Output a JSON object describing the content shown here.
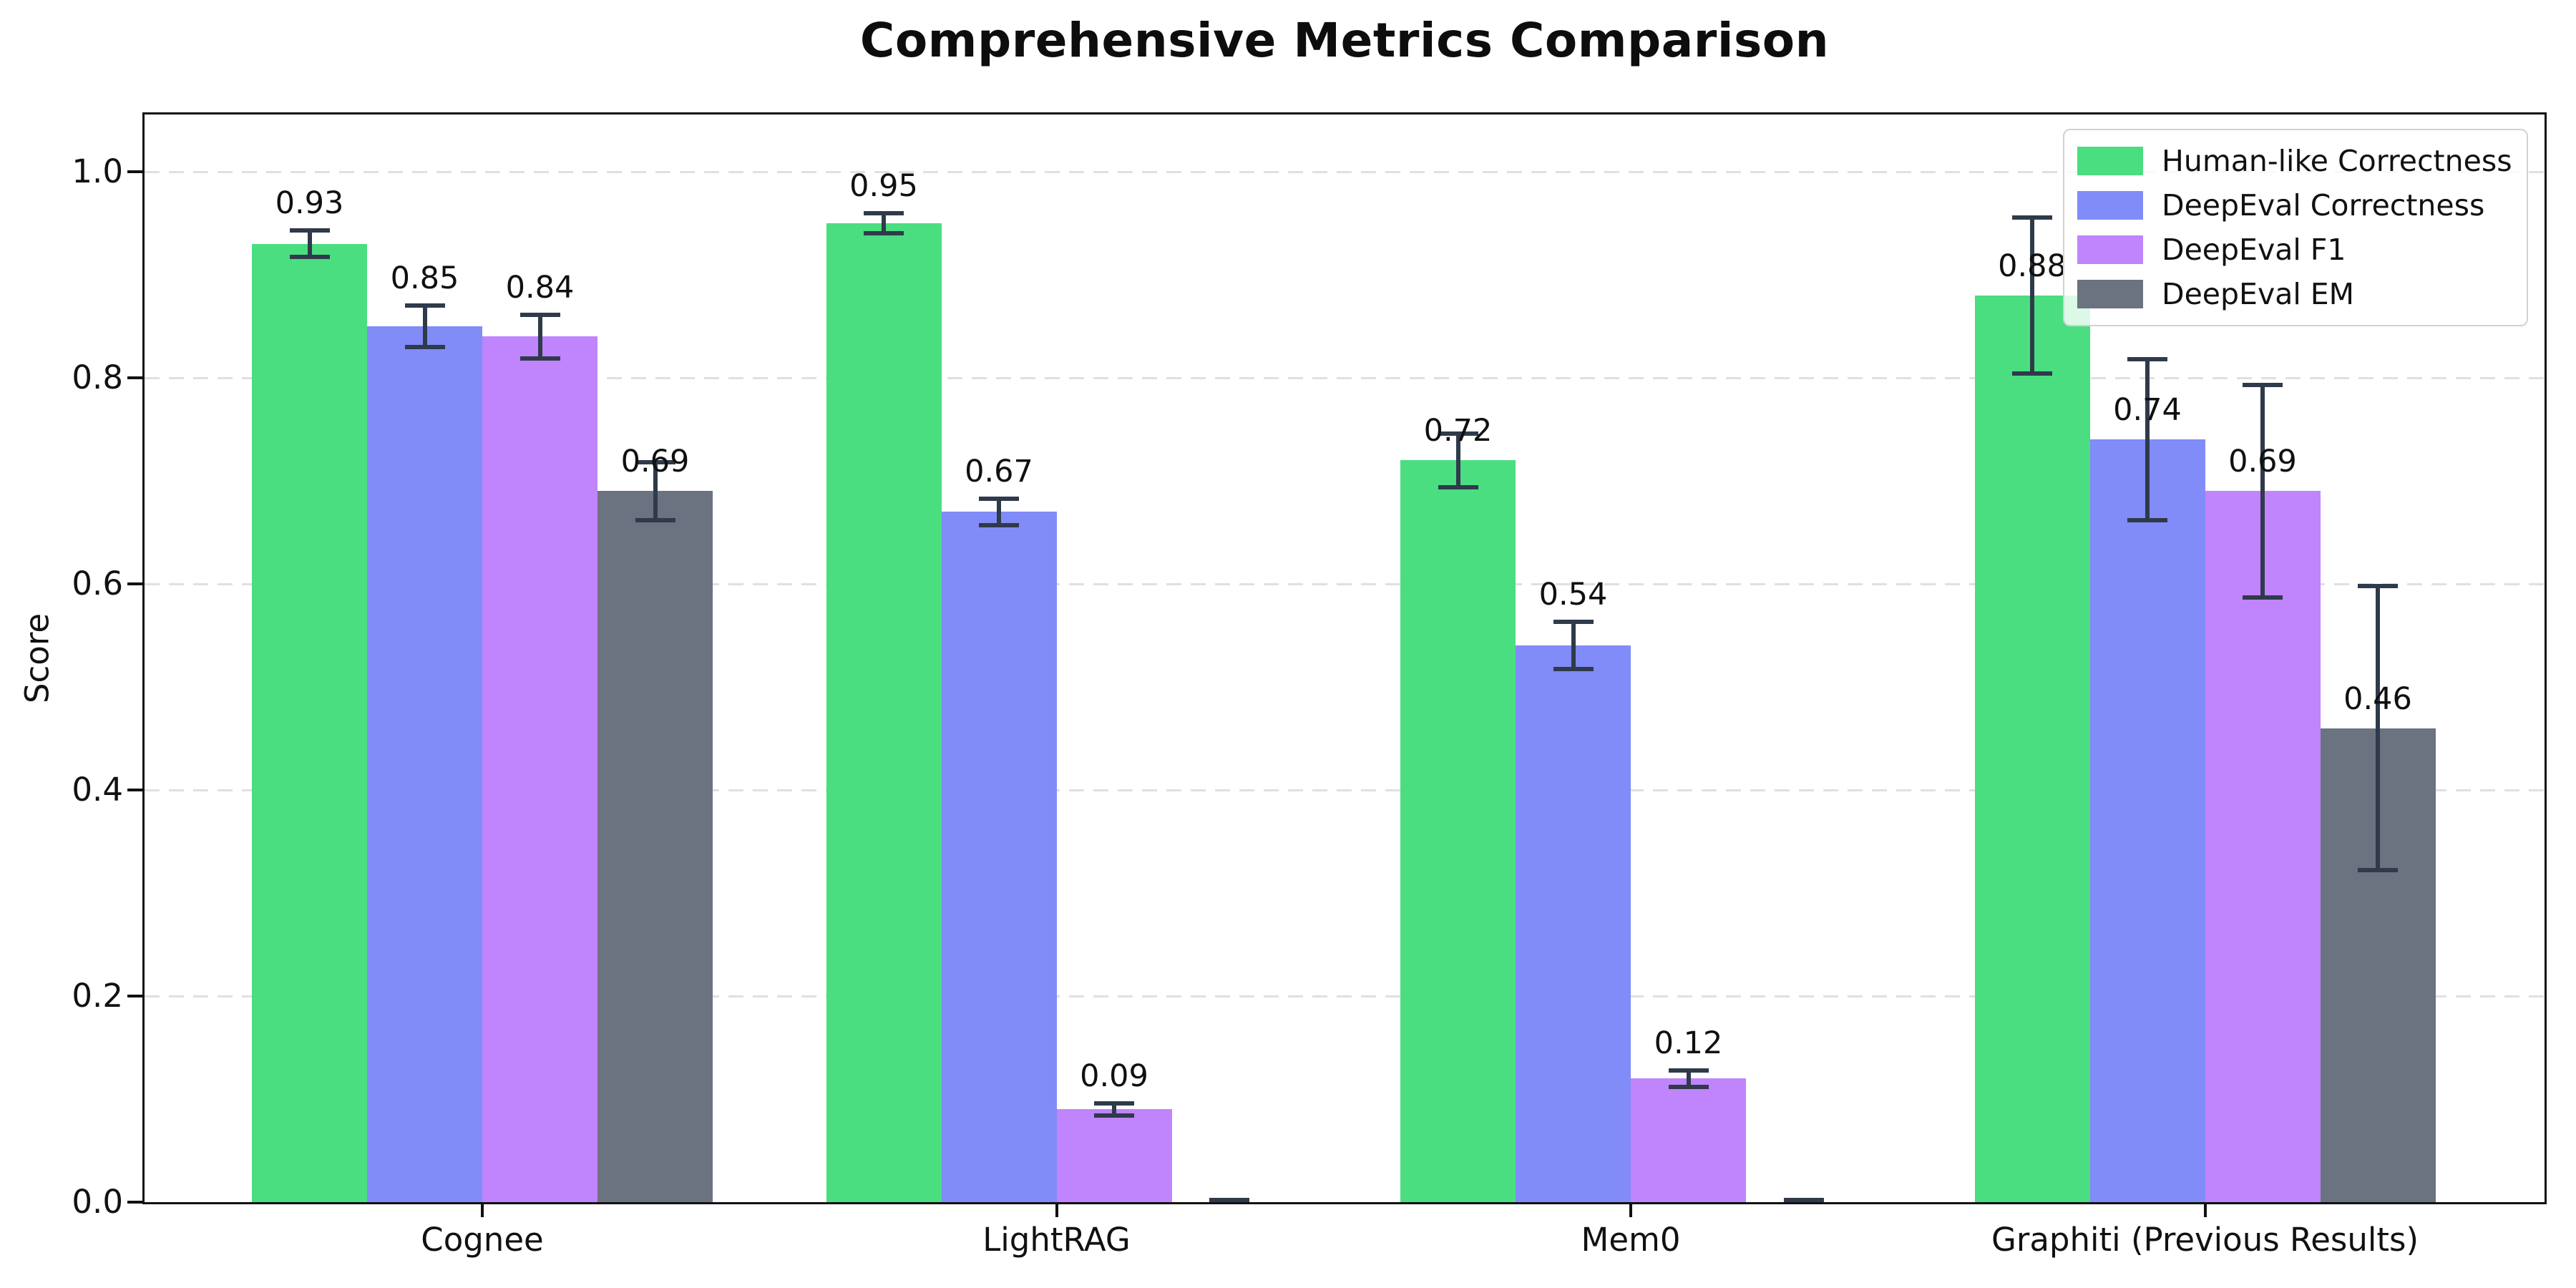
{
  "chart_data": {
    "type": "bar",
    "title": "Comprehensive Metrics Comparison",
    "xlabel": "",
    "ylabel": "Score",
    "categories": [
      "Cognee",
      "LightRAG",
      "Mem0",
      "Graphiti (Previous Results)"
    ],
    "series": [
      {
        "name": "Human-like Correctness",
        "color": "#4ade80",
        "values": [
          0.93,
          0.95,
          0.72,
          0.88
        ],
        "errors": [
          0.015,
          0.012,
          0.028,
          0.078
        ],
        "labels": [
          "0.93",
          "0.95",
          "0.72",
          "0.88"
        ]
      },
      {
        "name": "DeepEval Correctness",
        "color": "#818cf8",
        "values": [
          0.85,
          0.67,
          0.54,
          0.74
        ],
        "errors": [
          0.022,
          0.015,
          0.025,
          0.08
        ],
        "labels": [
          "0.85",
          "0.67",
          "0.54",
          "0.74"
        ]
      },
      {
        "name": "DeepEval F1",
        "color": "#c084fc",
        "values": [
          0.84,
          0.09,
          0.12,
          0.69
        ],
        "errors": [
          0.023,
          0.008,
          0.01,
          0.105
        ],
        "labels": [
          "0.84",
          "0.09",
          "0.12",
          "0.69"
        ]
      },
      {
        "name": "DeepEval EM",
        "color": "#6b7280",
        "values": [
          0.69,
          0.0,
          0.0,
          0.46
        ],
        "errors": [
          0.03,
          0.004,
          0.004,
          0.14
        ],
        "labels": [
          "0.69",
          "",
          "",
          "0.46"
        ]
      }
    ],
    "yticks": [
      {
        "value": 0.0,
        "label": "0.0"
      },
      {
        "value": 0.2,
        "label": "0.2"
      },
      {
        "value": 0.4,
        "label": "0.4"
      },
      {
        "value": 0.6,
        "label": "0.6"
      },
      {
        "value": 0.8,
        "label": "0.8"
      },
      {
        "value": 1.0,
        "label": "1.0"
      }
    ],
    "ylim": [
      0,
      1.06
    ],
    "grid": "horizontal-dashed",
    "legend_position": "upper right",
    "colors": {
      "error_bar": "#2f3a4a",
      "grid": "#d8d8d8",
      "axis": "#111111",
      "background": "#ffffff"
    }
  }
}
